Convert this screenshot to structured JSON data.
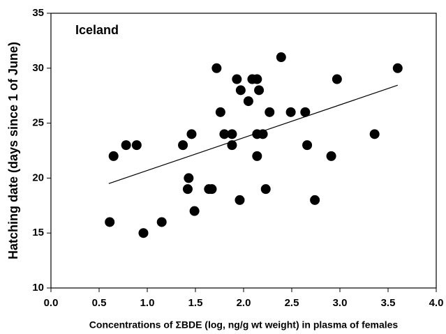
{
  "chart_data": {
    "type": "scatter",
    "annotation": "Iceland",
    "xlabel": "Concentrations of ΣBDE (log, ng/g wt weight) in plasma of females",
    "ylabel": "Hatching date (days since 1 of June)",
    "color": "#000000",
    "x": [
      0.61,
      0.65,
      0.78,
      0.89,
      0.96,
      1.15,
      1.37,
      1.43,
      1.42,
      1.46,
      1.49,
      1.64,
      1.67,
      1.72,
      1.76,
      1.8,
      1.88,
      1.88,
      1.93,
      1.96,
      1.97,
      2.05,
      2.09,
      2.14,
      2.14,
      2.14,
      2.16,
      2.2,
      2.23,
      2.27,
      2.39,
      2.49,
      2.64,
      2.66,
      2.74,
      2.91,
      2.97,
      3.36,
      3.6
    ],
    "values": [
      16,
      22,
      23,
      23,
      15,
      16,
      23,
      20,
      19,
      24,
      17,
      19,
      19,
      30,
      26,
      24,
      24,
      23,
      29,
      18,
      28,
      27,
      29,
      29,
      24,
      22,
      28,
      24,
      19,
      26,
      31,
      26,
      26,
      23,
      18,
      22,
      29,
      24,
      30
    ],
    "trend_line": {
      "x": [
        0.6,
        3.6
      ],
      "values": [
        19.5,
        28.45
      ]
    },
    "xlim": [
      0,
      4
    ],
    "xticks": [
      {
        "value": 0,
        "label": "0.0"
      },
      {
        "value": 0.5,
        "label": "0.5"
      },
      {
        "value": 1,
        "label": "1.0"
      },
      {
        "value": 1.5,
        "label": "1.5"
      },
      {
        "value": 2,
        "label": "2.0"
      },
      {
        "value": 2.5,
        "label": "2.5"
      },
      {
        "value": 3,
        "label": "3.0"
      },
      {
        "value": 3.5,
        "label": "3.5"
      },
      {
        "value": 4,
        "label": "4.0"
      }
    ],
    "ylim": [
      10,
      35
    ],
    "yticks": [
      10,
      15,
      20,
      25,
      30,
      35
    ],
    "grid": false
  }
}
